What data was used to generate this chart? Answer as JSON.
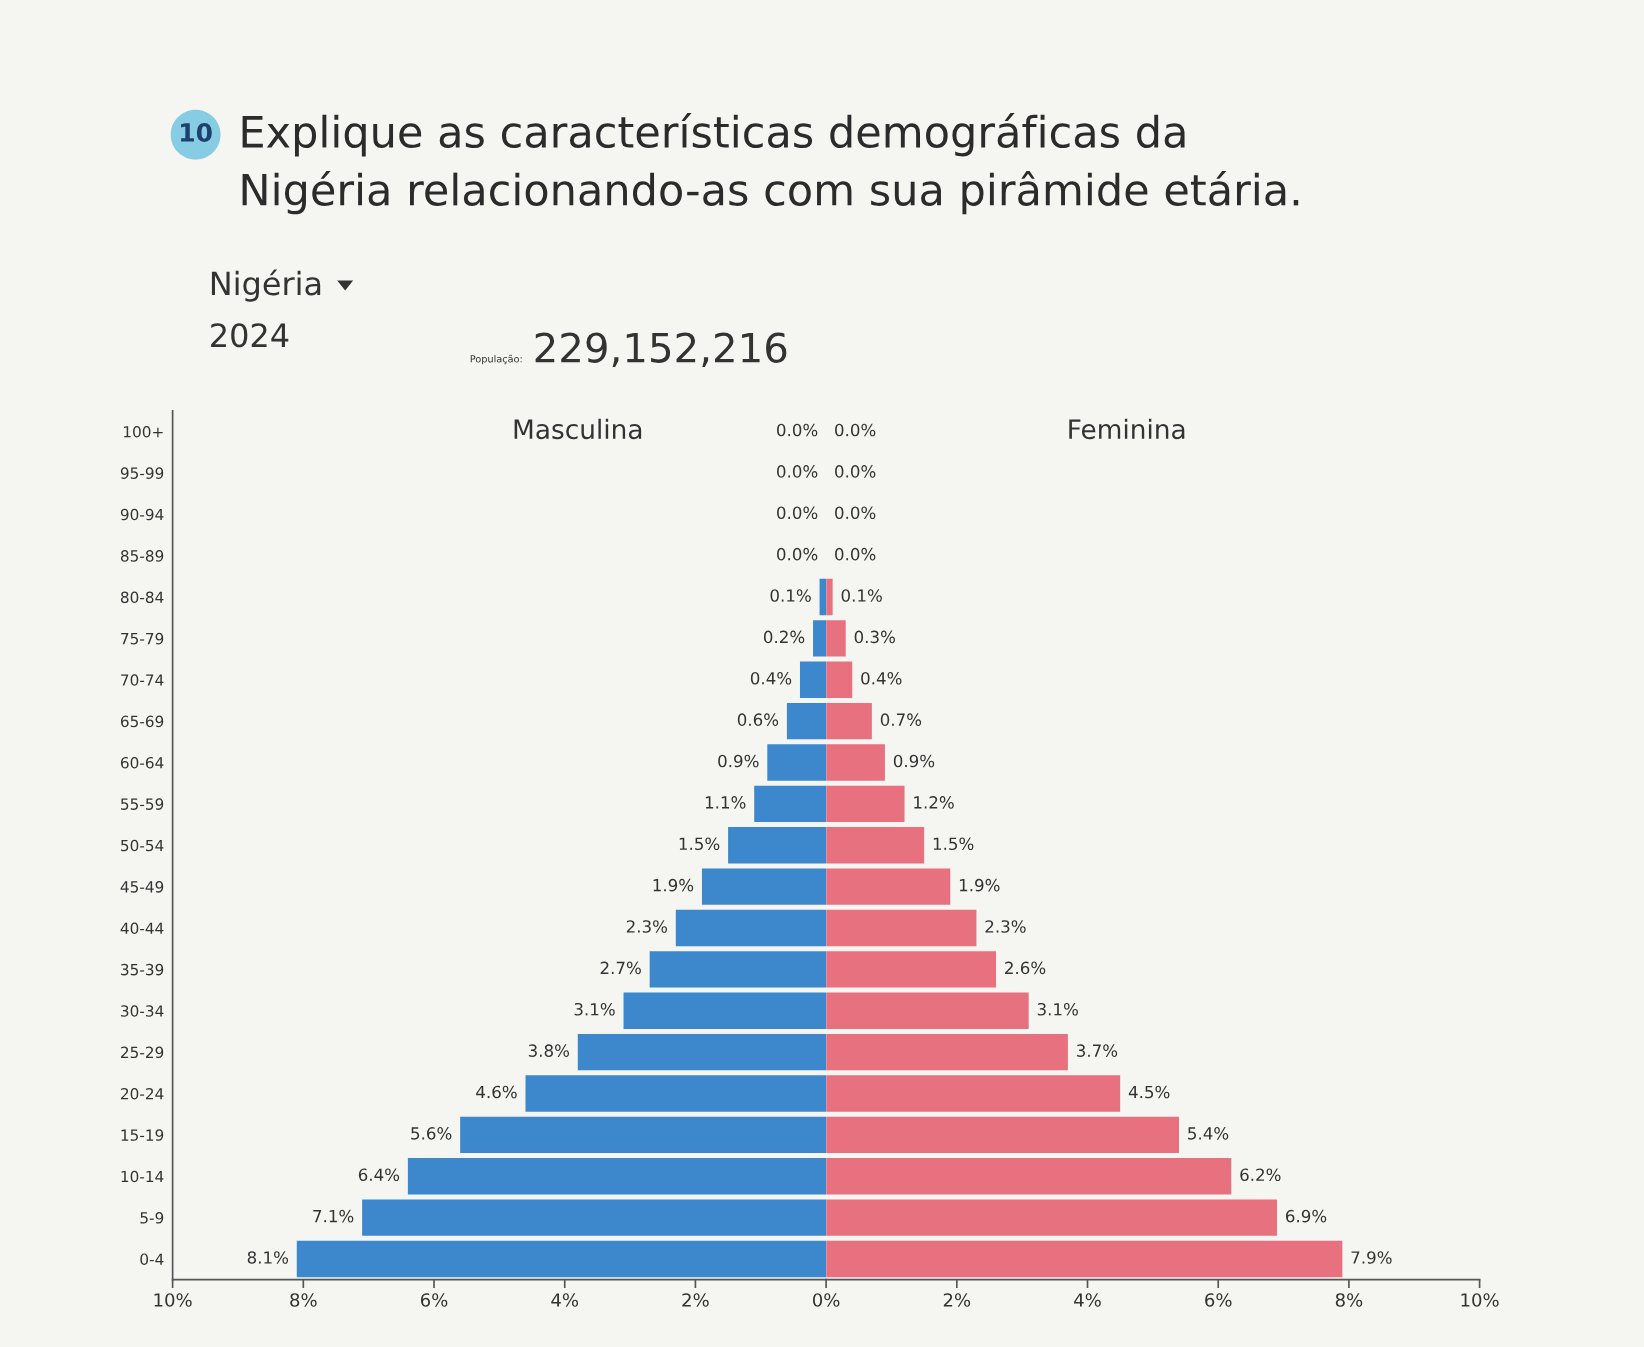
{
  "chart_data": [
    {
      "type": "bar",
      "orientation": "horizontal",
      "title": "Nigéria",
      "subtitle": "2024",
      "annotations": [
        "10",
        "Explique as características demográficas da",
        "Nigéria relacionando-as com sua pirâmide etária.",
        "População:",
        "229,152,216"
      ],
      "categories": [
        "100+",
        "95-99",
        "90-94",
        "85-89",
        "80-84",
        "75-79",
        "70-74",
        "65-69",
        "60-64",
        "55-59",
        "50-54",
        "45-49",
        "40-44",
        "35-39",
        "30-34",
        "25-29",
        "20-24",
        "15-19",
        "10-14",
        "5-9",
        "0-4"
      ],
      "series": [
        {
          "name": "Masculina",
          "color": "#3d87cc",
          "values": [
            0.0,
            0.0,
            0.0,
            0.0,
            0.1,
            0.2,
            0.4,
            0.6,
            0.9,
            1.1,
            1.5,
            1.9,
            2.3,
            2.7,
            3.1,
            3.8,
            4.6,
            5.6,
            6.4,
            7.1,
            8.1
          ],
          "value_labels": [
            "0.0%",
            "0.0%",
            "0.0%",
            "0.0%",
            "0.1%",
            "0.2%",
            "0.4%",
            "0.6%",
            "0.9%",
            "1.1%",
            "1.5%",
            "1.9%",
            "2.3%",
            "2.7%",
            "3.1%",
            "3.8%",
            "4.6%",
            "5.6%",
            "6.4%",
            "7.1%",
            "8.1%"
          ]
        }
      ],
      "xlim": [
        10,
        0
      ],
      "xticks": [
        {
          "value": 10,
          "label": "10%"
        },
        {
          "value": 8,
          "label": "8%"
        },
        {
          "value": 6,
          "label": "6%"
        },
        {
          "value": 4,
          "label": "4%"
        },
        {
          "value": 2,
          "label": "2%"
        },
        {
          "value": 0,
          "label": "0%"
        }
      ],
      "legend": "top"
    },
    {
      "type": "bar",
      "orientation": "horizontal",
      "categories": [
        "100+",
        "95-99",
        "90-94",
        "85-89",
        "80-84",
        "75-79",
        "70-74",
        "65-69",
        "60-64",
        "55-59",
        "50-54",
        "45-49",
        "40-44",
        "35-39",
        "30-34",
        "25-29",
        "20-24",
        "15-19",
        "10-14",
        "5-9",
        "0-4"
      ],
      "series": [
        {
          "name": "Feminina",
          "color": "#e8717f",
          "values": [
            0.0,
            0.0,
            0.0,
            0.0,
            0.1,
            0.3,
            0.4,
            0.7,
            0.9,
            1.2,
            1.5,
            1.9,
            2.3,
            2.6,
            3.1,
            3.7,
            4.5,
            5.4,
            6.2,
            6.9,
            7.9
          ],
          "value_labels": [
            "0.0%",
            "0.0%",
            "0.0%",
            "0.0%",
            "0.1%",
            "0.3%",
            "0.4%",
            "0.7%",
            "0.9%",
            "1.2%",
            "1.5%",
            "1.9%",
            "2.3%",
            "2.6%",
            "3.1%",
            "3.7%",
            "4.5%",
            "5.4%",
            "6.2%",
            "6.9%",
            "7.9%"
          ]
        }
      ],
      "xlim": [
        0,
        10
      ],
      "xticks": [
        {
          "value": 2,
          "label": "2%"
        },
        {
          "value": 4,
          "label": "4%"
        },
        {
          "value": 6,
          "label": "6%"
        },
        {
          "value": 8,
          "label": "8%"
        },
        {
          "value": 10,
          "label": "10%"
        }
      ],
      "tick_labels": "x",
      "legend": "top"
    }
  ]
}
